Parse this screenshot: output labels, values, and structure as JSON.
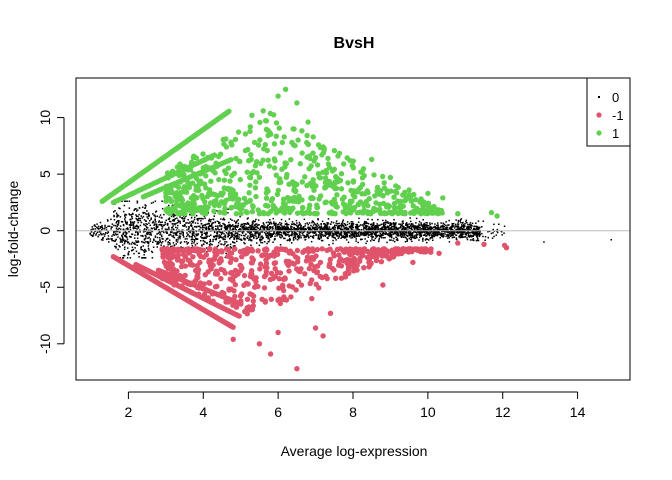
{
  "chart_data": {
    "type": "scatter",
    "title": "BvsH",
    "xlabel": "Average log-expression",
    "ylabel": "log-fold-change",
    "xlim": [
      0.6,
      15.4
    ],
    "ylim": [
      -13.2,
      13.5
    ],
    "x_ticks": [
      2,
      4,
      6,
      8,
      10,
      12,
      14
    ],
    "y_ticks": [
      -10,
      -5,
      0,
      5,
      10
    ],
    "hline": 0,
    "legend": {
      "position": "top-right",
      "entries": [
        {
          "label": "0",
          "color": "#000000"
        },
        {
          "label": "-1",
          "color": "#DF536B"
        },
        {
          "label": "1",
          "color": "#61D04F"
        }
      ]
    },
    "series": [
      {
        "status": "0",
        "color": "#000000",
        "description_points": "dense cloud near zero, x 1–15"
      },
      {
        "status": "-1",
        "color": "#DF536B"
      },
      {
        "status": "1",
        "color": "#61D04F"
      }
    ],
    "notable_points": [
      {
        "x": 6.2,
        "y": 12.5,
        "status": "1"
      },
      {
        "x": 6.5,
        "y": -12.2,
        "status": "-1"
      },
      {
        "x": 13.1,
        "y": -1.0,
        "status": "0"
      },
      {
        "x": 14.9,
        "y": -0.8,
        "status": "0"
      },
      {
        "x": 12.1,
        "y": -1.5,
        "status": "-1"
      },
      {
        "x": 11.7,
        "y": 1.6,
        "status": "1"
      }
    ]
  },
  "colors": {
    "black": "#000000",
    "red": "#DF536B",
    "green": "#61D04F",
    "zero_line": "#BEBEBE"
  }
}
